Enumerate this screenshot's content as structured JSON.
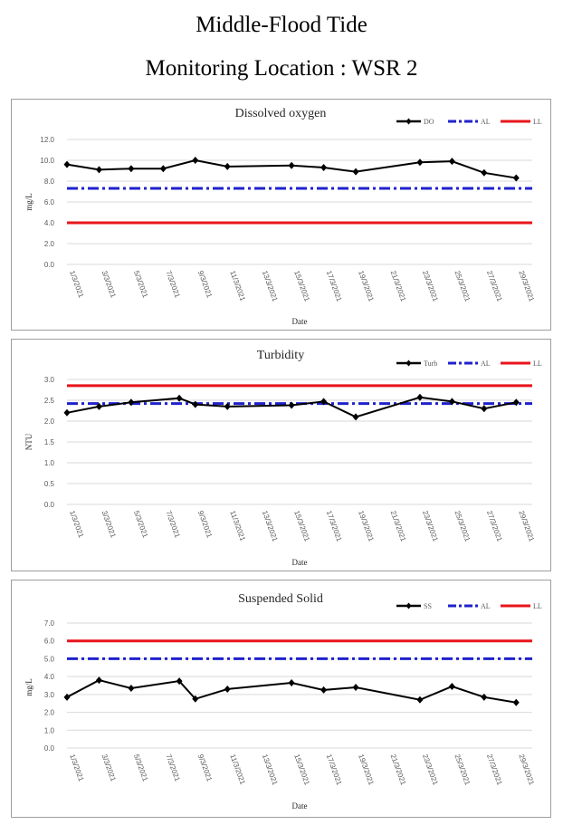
{
  "header": {
    "title_line1": "Middle-Flood Tide",
    "title_line2": "Monitoring Location : WSR 2"
  },
  "colors": {
    "series": "#000000",
    "al": "#1f22cc",
    "ll": "#e8141b",
    "grid": "#d9d9d9",
    "axis_text": "#595959"
  },
  "chart_data": [
    {
      "type": "line",
      "title": "Dissolved oxygen",
      "xlabel": "Date",
      "ylabel": "mg/L",
      "ylim": [
        0,
        12
      ],
      "yticks": [
        "0.0",
        "2.0",
        "4.0",
        "6.0",
        "8.0",
        "10.0",
        "12.0"
      ],
      "x_tick_labels": [
        "1/3/2021",
        "3/3/2021",
        "5/3/2021",
        "7/3/2021",
        "9/3/2021",
        "11/3/2021",
        "13/3/2021",
        "15/3/2021",
        "17/3/2021",
        "19/3/2021",
        "21/3/2021",
        "23/3/2021",
        "25/3/2021",
        "27/3/2021",
        "29/3/2021"
      ],
      "grid": true,
      "legend_position": "top-right",
      "series": [
        {
          "name": "DO",
          "points": [
            {
              "date": "1/3/2021",
              "value": 9.6
            },
            {
              "date": "3/3/2021",
              "value": 9.1
            },
            {
              "date": "5/3/2021",
              "value": 9.2
            },
            {
              "date": "7/3/2021",
              "value": 9.2
            },
            {
              "date": "9/3/2021",
              "value": 10.0
            },
            {
              "date": "11/3/2021",
              "value": 9.4
            },
            {
              "date": "15/3/2021",
              "value": 9.5
            },
            {
              "date": "17/3/2021",
              "value": 9.3
            },
            {
              "date": "19/3/2021",
              "value": 8.9
            },
            {
              "date": "23/3/2021",
              "value": 9.8
            },
            {
              "date": "25/3/2021",
              "value": 9.9
            },
            {
              "date": "27/3/2021",
              "value": 8.8
            },
            {
              "date": "29/3/2021",
              "value": 8.3
            }
          ]
        },
        {
          "name": "AL",
          "value": 7.3
        },
        {
          "name": "LL",
          "value": 4.0
        }
      ]
    },
    {
      "type": "line",
      "title": "Turbidity",
      "xlabel": "Date",
      "ylabel": "NTU",
      "ylim": [
        0,
        3
      ],
      "yticks": [
        "0.0",
        "0.5",
        "1.0",
        "1.5",
        "2.0",
        "2.5",
        "3.0"
      ],
      "x_tick_labels": [
        "1/3/2021",
        "3/3/2021",
        "5/3/2021",
        "7/3/2021",
        "9/3/2021",
        "11/3/2021",
        "13/3/2021",
        "15/3/2021",
        "17/3/2021",
        "19/3/2021",
        "21/3/2021",
        "23/3/2021",
        "25/3/2021",
        "27/3/2021",
        "29/3/2021"
      ],
      "grid": true,
      "legend_position": "top-right",
      "series": [
        {
          "name": "Turb",
          "points": [
            {
              "date": "1/3/2021",
              "value": 2.2
            },
            {
              "date": "3/3/2021",
              "value": 2.35
            },
            {
              "date": "5/3/2021",
              "value": 2.45
            },
            {
              "date": "8/3/2021",
              "value": 2.55
            },
            {
              "date": "9/3/2021",
              "value": 2.4
            },
            {
              "date": "11/3/2021",
              "value": 2.35
            },
            {
              "date": "15/3/2021",
              "value": 2.38
            },
            {
              "date": "17/3/2021",
              "value": 2.47
            },
            {
              "date": "19/3/2021",
              "value": 2.1
            },
            {
              "date": "23/3/2021",
              "value": 2.57
            },
            {
              "date": "25/3/2021",
              "value": 2.47
            },
            {
              "date": "27/3/2021",
              "value": 2.3
            },
            {
              "date": "29/3/2021",
              "value": 2.45
            }
          ]
        },
        {
          "name": "AL",
          "value": 2.42
        },
        {
          "name": "LL",
          "value": 2.85
        }
      ]
    },
    {
      "type": "line",
      "title": "Suspended Solid",
      "xlabel": "Date",
      "ylabel": "mg/L",
      "ylim": [
        0,
        7
      ],
      "yticks": [
        "0.0",
        "1.0",
        "2.0",
        "3.0",
        "4.0",
        "5.0",
        "6.0",
        "7.0"
      ],
      "x_tick_labels": [
        "1/3/2021",
        "3/3/2021",
        "5/3/2021",
        "7/3/2021",
        "9/3/2021",
        "11/3/2021",
        "13/3/2021",
        "15/3/2021",
        "17/3/2021",
        "19/3/2021",
        "21/3/2021",
        "23/3/2021",
        "25/3/2021",
        "27/3/2021",
        "29/3/2021"
      ],
      "grid": true,
      "legend_position": "top-right",
      "series": [
        {
          "name": "SS",
          "points": [
            {
              "date": "1/3/2021",
              "value": 2.85
            },
            {
              "date": "3/3/2021",
              "value": 3.8
            },
            {
              "date": "5/3/2021",
              "value": 3.35
            },
            {
              "date": "8/3/2021",
              "value": 3.75
            },
            {
              "date": "9/3/2021",
              "value": 2.75
            },
            {
              "date": "11/3/2021",
              "value": 3.3
            },
            {
              "date": "15/3/2021",
              "value": 3.65
            },
            {
              "date": "17/3/2021",
              "value": 3.25
            },
            {
              "date": "19/3/2021",
              "value": 3.4
            },
            {
              "date": "23/3/2021",
              "value": 2.7
            },
            {
              "date": "25/3/2021",
              "value": 3.45
            },
            {
              "date": "27/3/2021",
              "value": 2.85
            },
            {
              "date": "29/3/2021",
              "value": 2.55
            }
          ]
        },
        {
          "name": "AL",
          "value": 5.0
        },
        {
          "name": "LL",
          "value": 6.0
        }
      ]
    }
  ]
}
